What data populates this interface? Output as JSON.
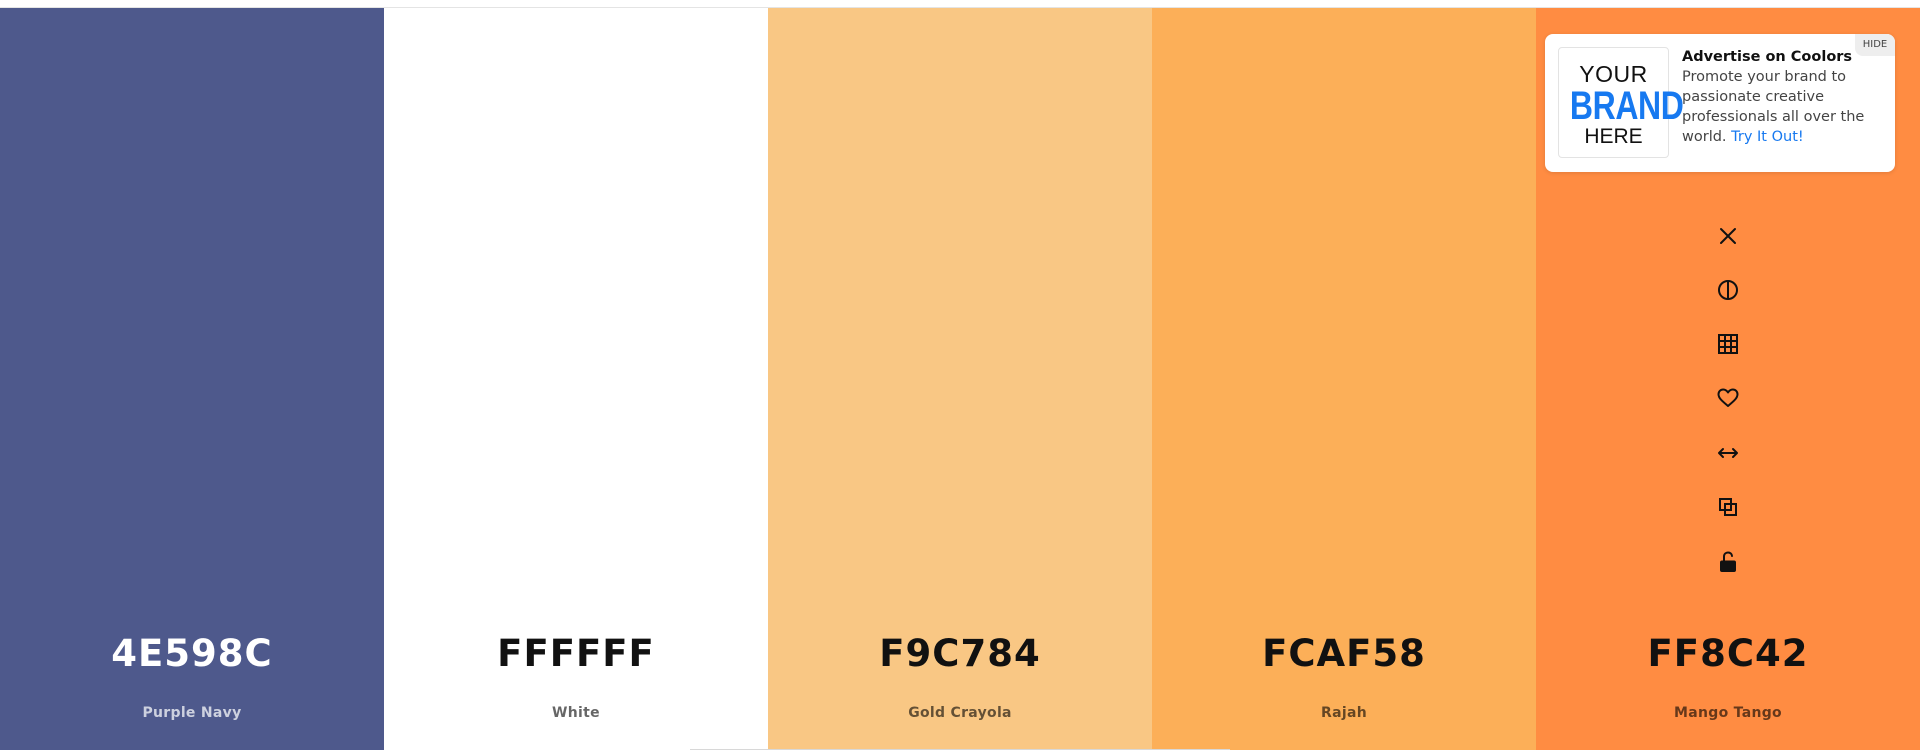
{
  "palette": {
    "colors": [
      {
        "hex": "4E598C",
        "name": "Purple Navy",
        "color": "#4E598C",
        "tone": "dark"
      },
      {
        "hex": "FFFFFF",
        "name": "White",
        "color": "#FFFFFF",
        "tone": "light"
      },
      {
        "hex": "F9C784",
        "name": "Gold Crayola",
        "color": "#F9C784",
        "tone": "light"
      },
      {
        "hex": "FCAF58",
        "name": "Rajah",
        "color": "#FCAF58",
        "tone": "light"
      },
      {
        "hex": "FF8C42",
        "name": "Mango Tango",
        "color": "#FF8C42",
        "tone": "light"
      }
    ]
  },
  "ad": {
    "logo_line1": "YOUR",
    "logo_line2": "BRAND",
    "logo_line3": "HERE",
    "title": "Advertise on Coolors",
    "body": "Promote your brand to passionate creative professionals all over the world.",
    "link": "Try It Out!",
    "hide_label": "HIDE",
    "accent_color": "#1779f0"
  },
  "tools": [
    {
      "icon": "close-icon",
      "name": "remove-color-button"
    },
    {
      "icon": "contrast-icon",
      "name": "shades-button"
    },
    {
      "icon": "grid-icon",
      "name": "view-shades-button"
    },
    {
      "icon": "heart-icon",
      "name": "save-color-button"
    },
    {
      "icon": "drag-arrows-icon",
      "name": "drag-button"
    },
    {
      "icon": "copy-icon",
      "name": "copy-hex-button"
    },
    {
      "icon": "unlock-icon",
      "name": "lock-color-button"
    }
  ]
}
